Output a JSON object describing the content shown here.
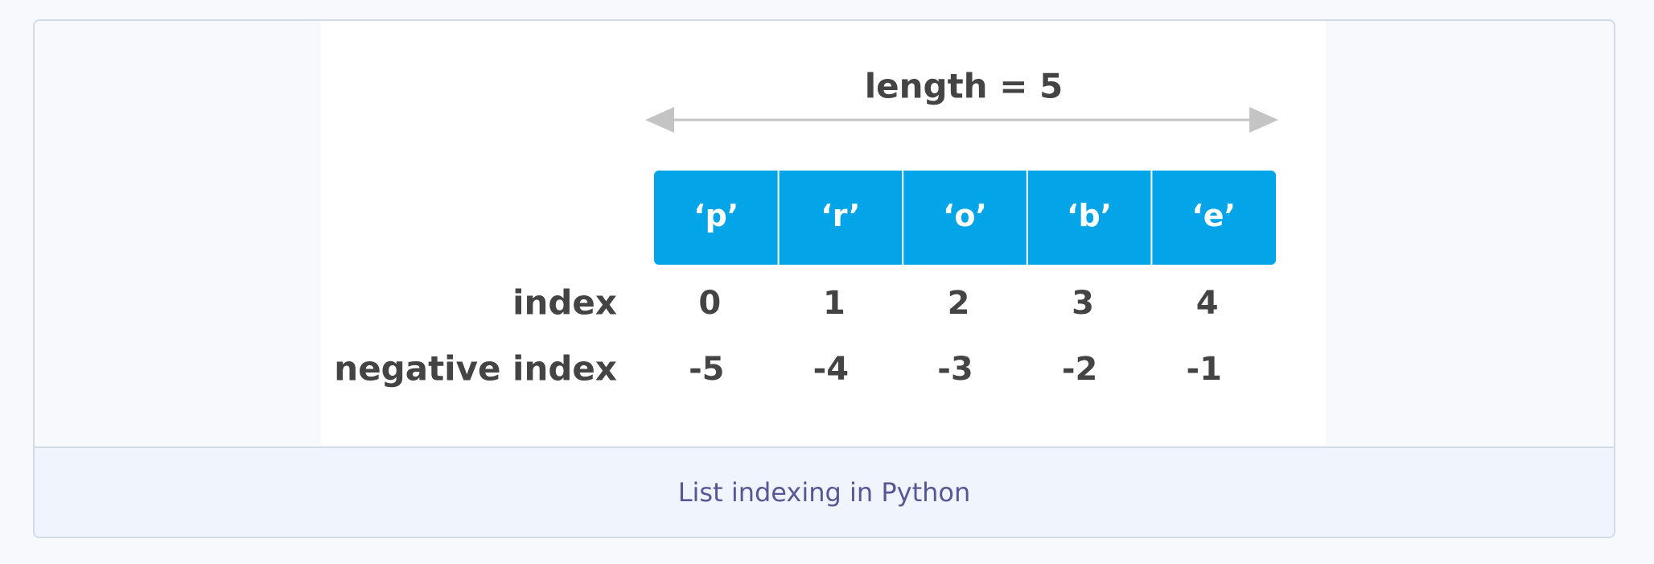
{
  "diagram": {
    "length_label": "length = 5",
    "cells": [
      "‘p’",
      "‘r’",
      "‘o’",
      "‘b’",
      "‘e’"
    ],
    "index_label": "index",
    "indices": [
      0,
      1,
      2,
      3,
      4
    ],
    "negative_label": "negative index",
    "negative_indices": [
      -5,
      -4,
      -3,
      -2,
      -1
    ]
  },
  "caption": "List indexing in Python"
}
